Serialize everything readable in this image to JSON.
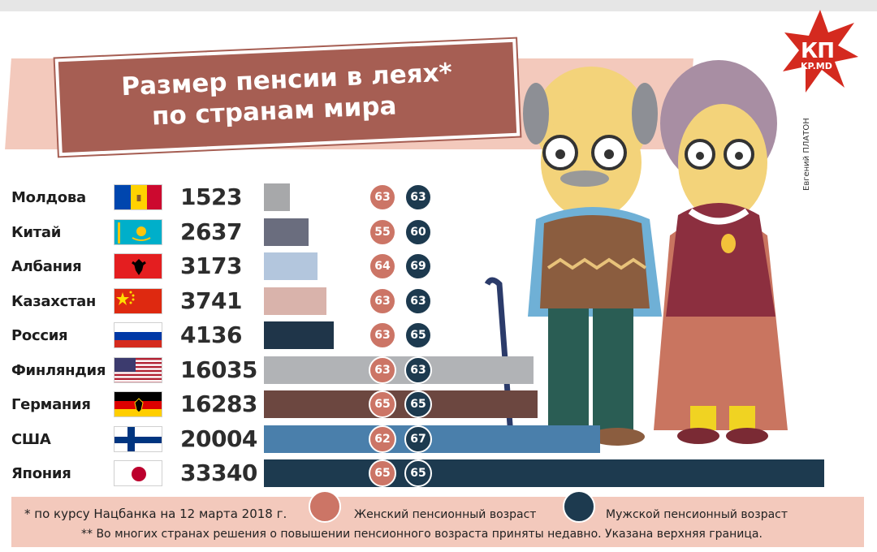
{
  "title_line1": "Размер пенсии в леях*",
  "title_line2": "по странам мира",
  "logo_main": "КП",
  "logo_sub": "KP.MD",
  "credit": "Евгений ПЛАТОН",
  "footnote1": "* по курсу Нацбанка на 12 марта 2018 г.",
  "footnote2": "** Во многих странах решения о повышении пенсионного возраста приняты недавно. Указана верхняя граница.",
  "legend": {
    "female": "Женский пенсионный возраст",
    "male": "Мужской пенсионный возраст"
  },
  "colors": {
    "female_circle": "#cc7566",
    "male_circle": "#1d3a4f",
    "ribbon": "#a65e53",
    "band": "#f3c9bc"
  },
  "chart_data": {
    "type": "bar",
    "title": "Размер пенсии в леях*",
    "subtitle": "по странам мира",
    "categories": [
      "Молдова",
      "Китай",
      "Албания",
      "Казахстан",
      "Россия",
      "Финляндия",
      "Германия",
      "США",
      "Япония"
    ],
    "values": [
      1523,
      2637,
      3173,
      3741,
      4136,
      16035,
      16283,
      20004,
      33340
    ],
    "female_age": [
      63,
      55,
      64,
      63,
      63,
      63,
      65,
      62,
      65
    ],
    "male_age": [
      63,
      60,
      69,
      63,
      65,
      63,
      65,
      67,
      65
    ],
    "bar_colors": [
      "#a7a8aa",
      "#6a6d7e",
      "#b3c6dd",
      "#d9b3ab",
      "#1f3549",
      "#b1b3b6",
      "#6c4740",
      "#4a7fab",
      "#1d3a4f"
    ],
    "flags": [
      "moldova-flag",
      "kazakhstan-flag",
      "albania-flag",
      "china-flag",
      "russia-flag",
      "usa-flag",
      "germany-flag",
      "finland-flag",
      "japan-flag"
    ]
  }
}
